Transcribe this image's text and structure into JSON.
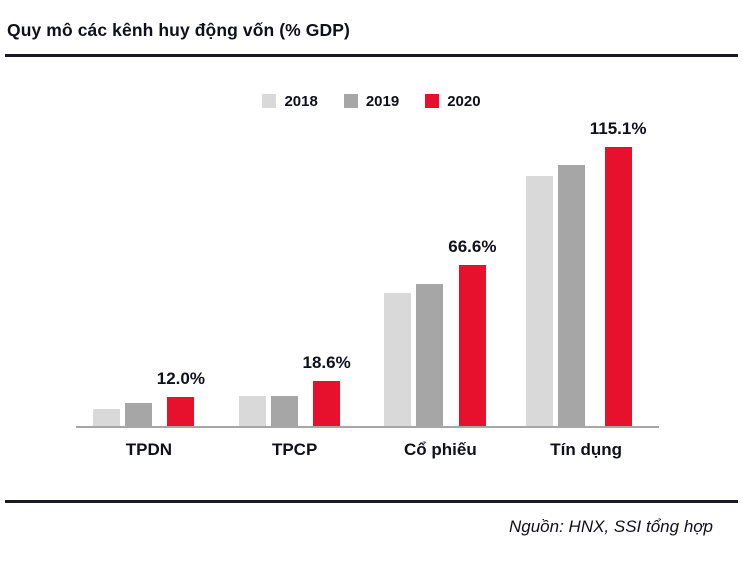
{
  "header": {
    "title": "Quy mô các kênh huy động vốn (% GDP)"
  },
  "chart_data": {
    "type": "bar",
    "title": "Quy mô các kênh huy động vốn (% GDP)",
    "categories": [
      "TPDN",
      "TPCP",
      "Cổ phiếu",
      "Tín dụng"
    ],
    "series": [
      {
        "name": "2018",
        "color": "#d9d9d9",
        "values": [
          7.0,
          12.5,
          55.0,
          103.0
        ]
      },
      {
        "name": "2019",
        "color": "#a6a6a6",
        "values": [
          9.5,
          12.3,
          58.5,
          107.5
        ]
      },
      {
        "name": "2020",
        "color": "#e8112d",
        "values": [
          12.0,
          18.6,
          66.6,
          115.1
        ]
      }
    ],
    "data_labels": {
      "series": "2020",
      "labels": [
        "12.0%",
        "18.6%",
        "66.6%",
        "115.1%"
      ]
    },
    "ylim": [
      0,
      125
    ],
    "ylabel": "",
    "xlabel": "",
    "legend_position": "top",
    "grid": false
  },
  "footer": {
    "source": "Nguồn: HNX, SSI tổng hợp"
  },
  "colors": {
    "series_2018": "#d9d9d9",
    "series_2019": "#a6a6a6",
    "series_2020": "#e8112d",
    "rule": "#191923",
    "axis": "#a6a6a6"
  }
}
